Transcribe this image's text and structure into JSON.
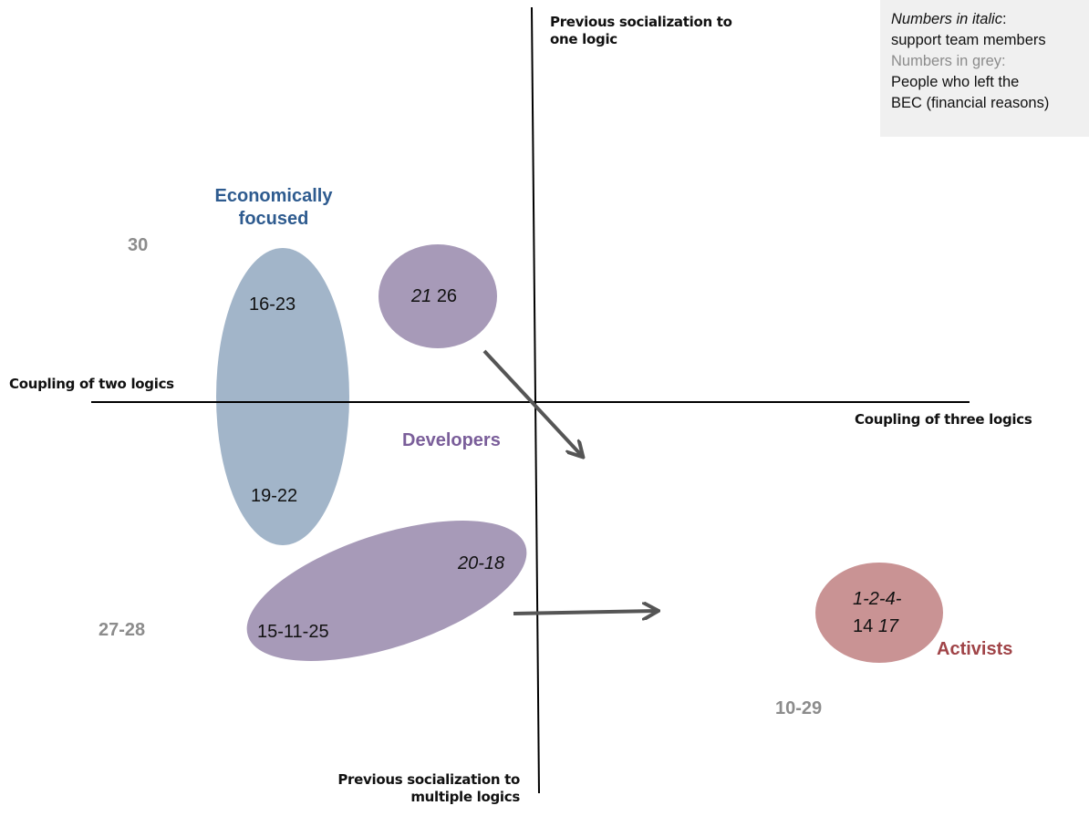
{
  "axes": {
    "top_label_line1": "Previous socialization to",
    "top_label_line2": "one logic",
    "bottom_label_line1": "Previous socialization to",
    "bottom_label_line2": "multiple logics",
    "left_label": "Coupling of two logics",
    "right_label": "Coupling of three logics"
  },
  "legend": {
    "line1_italic": "Numbers in italic",
    "line1_rest": ":",
    "line2": "support team members",
    "line3": "Numbers in grey:",
    "line4": "People who left the",
    "line5": "BEC (financial reasons)"
  },
  "groups": {
    "economically_focused_line1": "Economically",
    "economically_focused_line2": "focused",
    "developers": "Developers",
    "activists": "Activists"
  },
  "numbers": {
    "econ_top": "16-23",
    "econ_bottom": "19-22",
    "dev_circle_italic": "21",
    "dev_circle_regular": "26",
    "dev_ellipse_italic": "20-18",
    "dev_ellipse_regular": "15-11-25",
    "activist_line1_italic": "1-2-4-",
    "activist_line2_regular": "14",
    "activist_line2_italic": "17",
    "grey_30": "30",
    "grey_27_28": "27-28",
    "grey_10_29": "10-29"
  },
  "colors": {
    "economically_focused": "#a2b5c9",
    "economically_focused_text": "#2e5b8f",
    "developers": "#a79ab8",
    "developers_text": "#7a5e9a",
    "activists": "#c99394",
    "activists_text": "#a04448",
    "arrow": "#555555",
    "grey_numbers": "#8c8c8c",
    "legend_bg": "#f0f0f0"
  }
}
